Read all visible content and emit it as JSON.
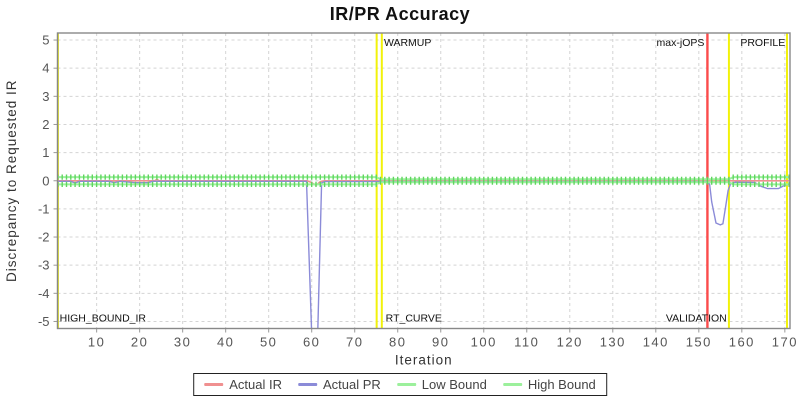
{
  "chart_data": {
    "type": "line",
    "title": "IR/PR Accuracy",
    "xlabel": "Iteration",
    "ylabel": "Discrepancy to Requested IR",
    "xlim": [
      0.9,
      171.2
    ],
    "ylim": [
      -5.25,
      5.25
    ],
    "xticks": [
      10,
      20,
      30,
      40,
      50,
      60,
      70,
      80,
      90,
      100,
      110,
      120,
      130,
      140,
      150,
      160,
      170
    ],
    "yticks": [
      -5,
      -4,
      -3,
      -2,
      -1,
      0,
      1,
      2,
      3,
      4,
      5
    ],
    "grid": true,
    "legend_position": "bottom",
    "colors": {
      "grid": "#d4d4d4",
      "border": "#888888",
      "tick_text": "#555555",
      "axis_label": "#333333",
      "annotation_text": "#111111",
      "phase_line_yellow": "#f2f20a",
      "phase_line_red": "#fb4b4b"
    },
    "series": [
      {
        "name": "Actual IR",
        "color": "#f09090",
        "width": 1.6,
        "points": [
          [
            0.9,
            0
          ],
          [
            23.5,
            0
          ],
          [
            24,
            0.05
          ],
          [
            24.5,
            0
          ],
          [
            59,
            0
          ],
          [
            60,
            -0.07
          ],
          [
            61,
            -0.16
          ],
          [
            62,
            -0.03
          ],
          [
            63,
            0
          ],
          [
            171.2,
            0
          ]
        ]
      },
      {
        "name": "Actual PR",
        "color": "#8b8bd8",
        "width": 1.4,
        "points": [
          [
            0.9,
            -0.02
          ],
          [
            4,
            -0.02
          ],
          [
            5,
            -0.08
          ],
          [
            6,
            -0.02
          ],
          [
            13,
            -0.02
          ],
          [
            14,
            -0.07
          ],
          [
            15.5,
            -0.02
          ],
          [
            19,
            -0.07
          ],
          [
            22,
            -0.07
          ],
          [
            23,
            -0.02
          ],
          [
            58.8,
            -0.02
          ],
          [
            60,
            -5.45
          ],
          [
            61.4,
            -5.45
          ],
          [
            62.3,
            -0.08
          ],
          [
            63,
            -0.03
          ],
          [
            151.8,
            -0.03
          ],
          [
            152.5,
            -0.12
          ],
          [
            153,
            -0.75
          ],
          [
            154,
            -1.5
          ],
          [
            155,
            -1.57
          ],
          [
            155.6,
            -1.53
          ],
          [
            156.2,
            -0.95
          ],
          [
            156.8,
            -0.35
          ],
          [
            157.4,
            -0.1
          ],
          [
            158.5,
            -0.05
          ],
          [
            163,
            -0.06
          ],
          [
            164.5,
            -0.2
          ],
          [
            166,
            -0.28
          ],
          [
            168.5,
            -0.28
          ],
          [
            170,
            -0.16
          ],
          [
            171.2,
            -0.12
          ]
        ]
      },
      {
        "name": "Low Bound",
        "color": "#9cf09c",
        "width": 2,
        "marker": "vtick",
        "marker_color": "#5fd65f",
        "points": [
          [
            0.9,
            -0.13
          ],
          [
            75,
            -0.13
          ],
          [
            76,
            -0.05
          ],
          [
            157,
            -0.05
          ],
          [
            158,
            -0.13
          ],
          [
            171.2,
            -0.13
          ]
        ]
      },
      {
        "name": "High Bound",
        "color": "#9cf09c",
        "width": 2,
        "marker": "vtick",
        "marker_color": "#5fd65f",
        "points": [
          [
            0.9,
            0.13
          ],
          [
            75,
            0.13
          ],
          [
            76,
            0.05
          ],
          [
            157,
            0.05
          ],
          [
            158,
            0.13
          ],
          [
            171.2,
            0.13
          ]
        ]
      }
    ],
    "vlines": [
      {
        "x": 1.0,
        "color": "#e0e028",
        "width": 2
      },
      {
        "x": 75.1,
        "color": "#f2f20a",
        "width": 2
      },
      {
        "x": 76.3,
        "color": "#f2f20a",
        "width": 2
      },
      {
        "x": 152.0,
        "color": "#fb4b4b",
        "width": 2.4
      },
      {
        "x": 157.0,
        "color": "#f2f20a",
        "width": 2
      },
      {
        "x": 170.5,
        "color": "#f2f20a",
        "width": 2
      }
    ],
    "annotations": [
      {
        "text": "WARMUP",
        "x": 76.8,
        "pos": "top",
        "align": "start"
      },
      {
        "text": "max-jOPS",
        "x": 151.3,
        "pos": "top",
        "align": "end"
      },
      {
        "text": "PROFILE",
        "x": 170.1,
        "pos": "top",
        "align": "end"
      },
      {
        "text": "HIGH_BOUND_IR",
        "x": 1.4,
        "pos": "bottom",
        "align": "start"
      },
      {
        "text": "RT_CURVE",
        "x": 77.2,
        "pos": "bottom",
        "align": "start"
      },
      {
        "text": "VALIDATION",
        "x": 156.5,
        "pos": "bottom",
        "align": "end"
      }
    ]
  }
}
